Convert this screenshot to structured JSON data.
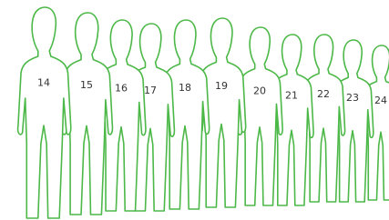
{
  "figures": [
    {
      "label": "14"
    },
    {
      "label": "15"
    },
    {
      "label": "16"
    },
    {
      "label": "17"
    },
    {
      "label": "18"
    },
    {
      "label": "19"
    },
    {
      "label": "20"
    },
    {
      "label": "21"
    },
    {
      "label": "22"
    },
    {
      "label": "23"
    },
    {
      "label": "24"
    }
  ]
}
